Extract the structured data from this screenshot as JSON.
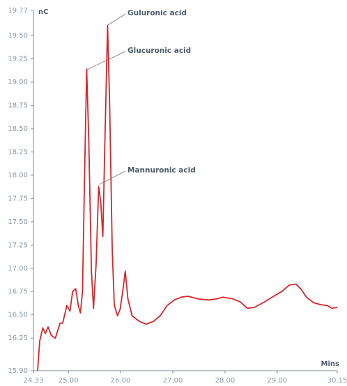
{
  "chart_data": {
    "type": "line",
    "y_label": "nC",
    "x_label": "Mins",
    "annotations": [
      "Guluronic acid",
      "Glucuronic acid",
      "Mannuronic acid"
    ],
    "xlim": [
      24.33,
      30.15
    ],
    "xticks": [
      24.33,
      {
        "value": 25,
        "label": "25.00"
      },
      {
        "value": 26,
        "label": "26.00"
      },
      {
        "value": 27,
        "label": "27.00"
      },
      {
        "value": 28,
        "label": "28.00"
      },
      {
        "value": 29,
        "label": "29.00"
      },
      30.15
    ],
    "ylim": [
      15.9,
      19.77
    ],
    "yticks": [
      {
        "value": 15.9,
        "label": "15.90"
      },
      16.25,
      {
        "value": 16.5,
        "label": "16.50"
      },
      16.75,
      {
        "value": 17,
        "label": "17.00"
      },
      17.25,
      {
        "value": 17.5,
        "label": "17.50"
      },
      17.75,
      {
        "value": 18,
        "label": "18.00"
      },
      18.25,
      {
        "value": 18.5,
        "label": "18.50"
      },
      18.75,
      {
        "value": 19,
        "label": "19.00"
      },
      19.25,
      {
        "value": 19.5,
        "label": "19.50"
      },
      19.77
    ],
    "series": [
      {
        "color": "#d7262b",
        "x": [
          24.41,
          24.45,
          24.51,
          24.56,
          24.61,
          24.67,
          24.75,
          24.84,
          24.89,
          24.97,
          25.03,
          25.08,
          25.14,
          25.19,
          25.23,
          25.27,
          25.31,
          25.35,
          25.39,
          25.44,
          25.48,
          25.53,
          25.58,
          25.62,
          25.66,
          25.7,
          25.75,
          25.79,
          25.84,
          25.88,
          25.94,
          25.99,
          26.04,
          26.09,
          26.14,
          26.22,
          26.36,
          26.49,
          26.63,
          26.76,
          26.89,
          27.03,
          27.16,
          27.29,
          27.49,
          27.69,
          27.83,
          27.96,
          28.16,
          28.29,
          28.43,
          28.56,
          28.76,
          28.96,
          29.09,
          29.23,
          29.36,
          29.45,
          29.56,
          29.7,
          29.83,
          29.96,
          30.05,
          30.15
        ],
        "values": [
          15.9,
          16.22,
          16.36,
          16.3,
          16.37,
          16.28,
          16.25,
          16.41,
          16.41,
          16.6,
          16.54,
          16.75,
          16.78,
          16.6,
          16.52,
          16.75,
          18.01,
          19.14,
          18.38,
          16.97,
          16.57,
          17.04,
          17.88,
          17.71,
          17.34,
          18.38,
          19.61,
          18.75,
          17.19,
          16.6,
          16.49,
          16.56,
          16.75,
          16.97,
          16.67,
          16.49,
          16.43,
          16.4,
          16.43,
          16.49,
          16.6,
          16.66,
          16.69,
          16.7,
          16.67,
          16.66,
          16.67,
          16.69,
          16.67,
          16.64,
          16.57,
          16.58,
          16.64,
          16.71,
          16.75,
          16.82,
          16.83,
          16.78,
          16.69,
          16.63,
          16.61,
          16.6,
          16.57,
          16.58
        ]
      }
    ]
  }
}
